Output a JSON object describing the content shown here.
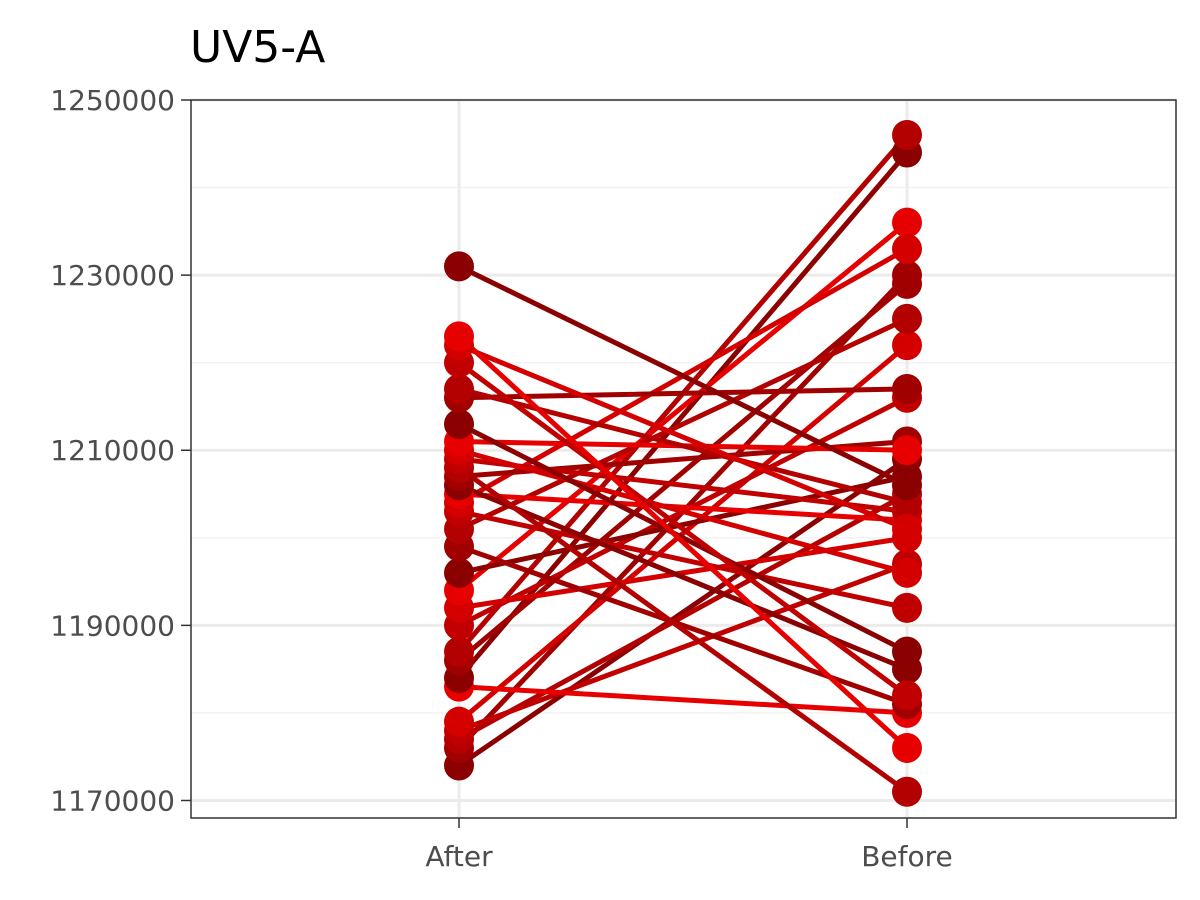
{
  "chart_data": {
    "type": "line",
    "title": "UV5-A",
    "xlabel": "",
    "ylabel": "",
    "categories": [
      "After",
      "Before"
    ],
    "ylim": [
      1168000,
      1250000
    ],
    "y_ticks": [
      1170000,
      1190000,
      1210000,
      1230000,
      1250000
    ],
    "y_tick_labels": [
      "1170000",
      "1190000",
      "1210000",
      "1230000",
      "1250000"
    ],
    "grid": true,
    "legend": "none",
    "colors": {
      "panel_border": "#333333",
      "grid_major": "#ebebeb",
      "grid_minor": "#f2f2f2",
      "axis_text": "#4d4d4d",
      "series_palette": [
        "#8b0000",
        "#a00000",
        "#b30000",
        "#c00000",
        "#d40000",
        "#e60000"
      ]
    },
    "pairs": [
      {
        "after": 1174000,
        "before": 1209000
      },
      {
        "after": 1176000,
        "before": 1230000
      },
      {
        "after": 1177000,
        "before": 1205000
      },
      {
        "after": 1178000,
        "before": 1197000
      },
      {
        "after": 1179000,
        "before": 1222000
      },
      {
        "after": 1183000,
        "before": 1180000
      },
      {
        "after": 1184000,
        "before": 1244000
      },
      {
        "after": 1186000,
        "before": 1229000
      },
      {
        "after": 1187000,
        "before": 1246000
      },
      {
        "after": 1190000,
        "before": 1216000
      },
      {
        "after": 1192000,
        "before": 1200000
      },
      {
        "after": 1194000,
        "before": 1236000
      },
      {
        "after": 1196000,
        "before": 1207000
      },
      {
        "after": 1199000,
        "before": 1181000
      },
      {
        "after": 1201000,
        "before": 1225000
      },
      {
        "after": 1203000,
        "before": 1192000
      },
      {
        "after": 1204000,
        "before": 1233000
      },
      {
        "after": 1205000,
        "before": 1202000
      },
      {
        "after": 1206000,
        "before": 1185000
      },
      {
        "after": 1207000,
        "before": 1211000
      },
      {
        "after": 1208000,
        "before": 1171000
      },
      {
        "after": 1209000,
        "before": 1203000
      },
      {
        "after": 1210000,
        "before": 1196000
      },
      {
        "after": 1211000,
        "before": 1210000
      },
      {
        "after": 1213000,
        "before": 1187000
      },
      {
        "after": 1216000,
        "before": 1217000
      },
      {
        "after": 1217000,
        "before": 1204000
      },
      {
        "after": 1220000,
        "before": 1182000
      },
      {
        "after": 1222000,
        "before": 1201000
      },
      {
        "after": 1223000,
        "before": 1176000
      },
      {
        "after": 1231000,
        "before": 1206000
      }
    ]
  }
}
